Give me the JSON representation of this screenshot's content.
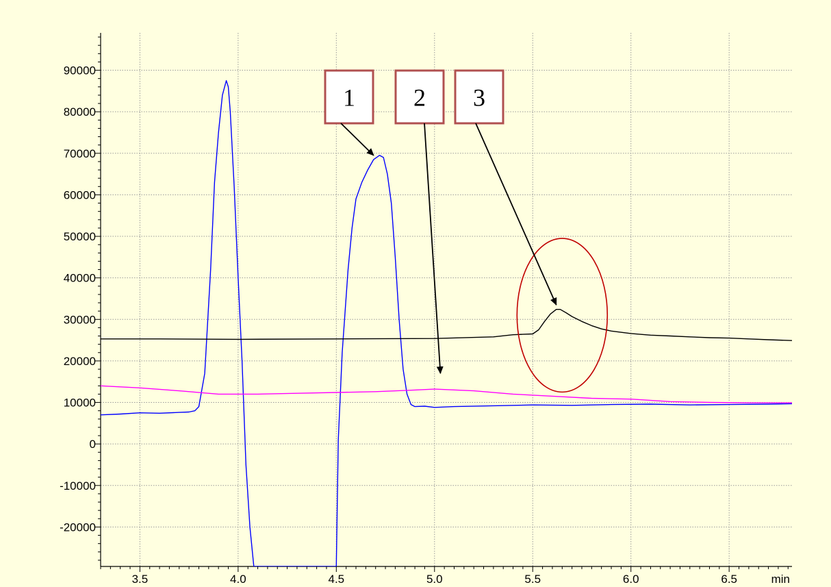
{
  "chart_data": {
    "type": "line",
    "title": "",
    "xlabel": "",
    "ylabel": "",
    "x_unit": "min",
    "xlim": [
      3.3,
      6.82
    ],
    "ylim": [
      -29500,
      99000
    ],
    "x_ticks": [
      3.5,
      4.0,
      4.5,
      5.0,
      5.5,
      6.0,
      6.5
    ],
    "x_tick_labels": [
      "3.5",
      "4.0",
      "4.5",
      "5.0",
      "5.5",
      "6.0",
      "6.5"
    ],
    "y_ticks": [
      90000,
      80000,
      70000,
      60000,
      50000,
      40000,
      30000,
      20000,
      10000,
      0,
      -10000,
      -20000
    ],
    "y_tick_labels": [
      "90000",
      "80000",
      "70000",
      "60000",
      "50000",
      "40000",
      "30000",
      "20000",
      "10000",
      "0",
      "-10000",
      "-20000"
    ],
    "grid": true,
    "series": [
      {
        "color": "#0000ff",
        "x": [
          3.3,
          3.4,
          3.5,
          3.6,
          3.7,
          3.75,
          3.78,
          3.8,
          3.83,
          3.86,
          3.88,
          3.9,
          3.92,
          3.94,
          3.95,
          3.96,
          3.98,
          4.0,
          4.02,
          4.04,
          4.06,
          4.08,
          4.09,
          4.5,
          4.51,
          4.53,
          4.56,
          4.58,
          4.6,
          4.63,
          4.66,
          4.69,
          4.72,
          4.74,
          4.76,
          4.78,
          4.8,
          4.82,
          4.84,
          4.86,
          4.88,
          4.9,
          4.95,
          5.0,
          5.1,
          5.3,
          5.5,
          5.7,
          5.9,
          6.1,
          6.3,
          6.5,
          6.7,
          6.82
        ],
        "y": [
          7000,
          7200,
          7500,
          7400,
          7600,
          7700,
          8000,
          9000,
          17000,
          42000,
          63000,
          75000,
          84000,
          87500,
          86000,
          80000,
          62000,
          40000,
          20000,
          -5000,
          -20000,
          -29500,
          -29500,
          -29500,
          1000,
          22000,
          42000,
          52000,
          59000,
          63000,
          66000,
          68500,
          69500,
          69000,
          65000,
          58000,
          45000,
          30000,
          18000,
          12000,
          9500,
          9000,
          9100,
          8800,
          9000,
          9200,
          9400,
          9300,
          9500,
          9600,
          9400,
          9500,
          9600,
          9700
        ]
      },
      {
        "color": "#000000",
        "x": [
          3.3,
          3.6,
          4.0,
          4.5,
          5.0,
          5.3,
          5.4,
          5.45,
          5.5,
          5.53,
          5.56,
          5.59,
          5.62,
          5.64,
          5.67,
          5.7,
          5.75,
          5.8,
          5.85,
          5.9,
          6.0,
          6.1,
          6.2,
          6.3,
          6.4,
          6.5,
          6.6,
          6.7,
          6.82
        ],
        "y": [
          25300,
          25300,
          25200,
          25300,
          25400,
          25800,
          26300,
          26400,
          26500,
          27500,
          29500,
          31300,
          32400,
          32400,
          31600,
          30700,
          29500,
          28500,
          27700,
          27200,
          26600,
          26200,
          26000,
          25800,
          25600,
          25500,
          25300,
          25100,
          24900
        ]
      },
      {
        "color": "#ff00ff",
        "x": [
          3.3,
          3.5,
          3.7,
          3.9,
          4.1,
          4.3,
          4.5,
          4.7,
          4.9,
          5.0,
          5.2,
          5.4,
          5.6,
          5.8,
          6.0,
          6.2,
          6.4,
          6.6,
          6.82
        ],
        "y": [
          14000,
          13500,
          12800,
          12000,
          12000,
          12200,
          12400,
          12600,
          13000,
          13200,
          12800,
          12000,
          11500,
          11000,
          10800,
          10200,
          10000,
          9900,
          9900
        ]
      }
    ],
    "annotations": [
      {
        "label": "1",
        "arrow_to": {
          "x": 4.69,
          "y": 69500
        }
      },
      {
        "label": "2",
        "arrow_to": {
          "x": 5.03,
          "y": 17000
        }
      },
      {
        "label": "3",
        "arrow_to": {
          "x": 5.62,
          "y": 33500
        }
      }
    ],
    "highlight_ellipse": {
      "cx": 5.65,
      "cy": 31000,
      "rx": 0.23,
      "ry": 18500,
      "color": "#c00000"
    }
  }
}
